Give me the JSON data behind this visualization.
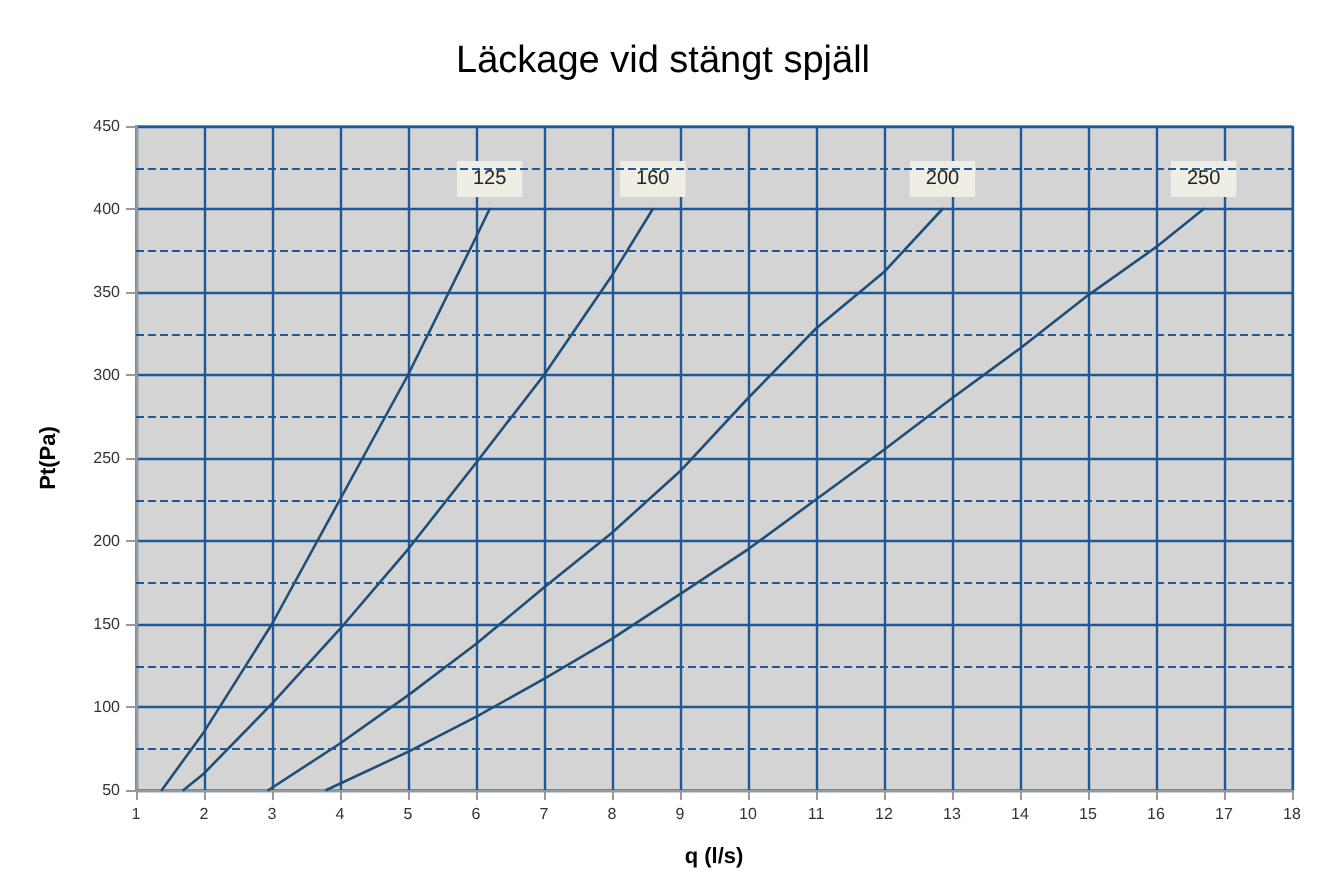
{
  "chart_data": {
    "type": "line",
    "title": "Läckage vid stängt spjäll",
    "xlabel": "q (l/s)",
    "ylabel": "Pt(Pa)",
    "xlim": [
      1,
      18
    ],
    "xticks": [
      1,
      2,
      3,
      4,
      5,
      6,
      7,
      8,
      9,
      10,
      11,
      12,
      13,
      14,
      15,
      16,
      17,
      18
    ],
    "ylim": [
      50,
      450
    ],
    "yticks": [
      50,
      {
        "value": 75,
        "label": null
      },
      100,
      {
        "value": 125,
        "label": null
      },
      150,
      {
        "value": 175,
        "label": null
      },
      200,
      {
        "value": 225,
        "label": null
      },
      250,
      {
        "value": 275,
        "label": null
      },
      300,
      {
        "value": 325,
        "label": null
      },
      350,
      {
        "value": 375,
        "label": null
      },
      400,
      {
        "value": 425,
        "label": null
      },
      450
    ],
    "grid": true,
    "legend": false,
    "marker": "none",
    "line_style": "solid",
    "series": [
      {
        "name": "125",
        "color": "#1f4e79",
        "x": [
          1.38,
          2,
          3,
          4,
          5,
          6,
          6.2
        ],
        "values": [
          50,
          85,
          150,
          225,
          300,
          383,
          400
        ]
      },
      {
        "name": "160",
        "color": "#1f4e79",
        "x": [
          1.7,
          2,
          3,
          4,
          5,
          6,
          7,
          8,
          8.6
        ],
        "values": [
          50,
          60,
          102,
          147,
          195,
          247,
          300,
          360,
          400
        ]
      },
      {
        "name": "200",
        "color": "#1f4e79",
        "x": [
          2.95,
          4,
          5,
          6,
          7,
          8,
          9,
          10,
          11,
          12,
          12.86
        ],
        "values": [
          50,
          78,
          107,
          138,
          172,
          205,
          242,
          286,
          328,
          362,
          400
        ]
      },
      {
        "name": "250",
        "color": "#1f4e79",
        "x": [
          3.8,
          5,
          6,
          7,
          8,
          9,
          10,
          11,
          12,
          13,
          14,
          15,
          16,
          16.7
        ],
        "values": [
          50,
          73,
          94,
          117,
          141,
          168,
          195,
          225,
          255,
          286,
          316,
          348,
          377,
          400
        ]
      }
    ]
  }
}
